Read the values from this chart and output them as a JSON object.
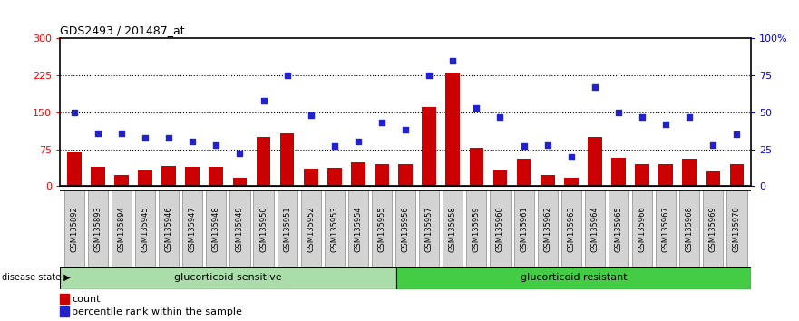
{
  "title": "GDS2493 / 201487_at",
  "samples": [
    "GSM135892",
    "GSM135893",
    "GSM135894",
    "GSM135945",
    "GSM135946",
    "GSM135947",
    "GSM135948",
    "GSM135949",
    "GSM135950",
    "GSM135951",
    "GSM135952",
    "GSM135953",
    "GSM135954",
    "GSM135955",
    "GSM135956",
    "GSM135957",
    "GSM135958",
    "GSM135959",
    "GSM135960",
    "GSM135961",
    "GSM135962",
    "GSM135963",
    "GSM135964",
    "GSM135965",
    "GSM135966",
    "GSM135967",
    "GSM135968",
    "GSM135969",
    "GSM135970"
  ],
  "counts": [
    68,
    40,
    22,
    32,
    42,
    40,
    40,
    18,
    100,
    108,
    35,
    38,
    48,
    45,
    45,
    160,
    230,
    78,
    32,
    55,
    22,
    18,
    100,
    58,
    45,
    45,
    55,
    30,
    45
  ],
  "percentiles": [
    50,
    36,
    36,
    33,
    33,
    30,
    28,
    22,
    58,
    75,
    48,
    27,
    30,
    43,
    38,
    75,
    85,
    53,
    47,
    27,
    28,
    20,
    67,
    50,
    47,
    42,
    47,
    28,
    35
  ],
  "sensitive_count": 14,
  "resistant_count": 15,
  "ylim_left": [
    0,
    300
  ],
  "ylim_right": [
    0,
    100
  ],
  "yticks_left": [
    0,
    75,
    150,
    225,
    300
  ],
  "yticks_right": [
    0,
    25,
    50,
    75,
    100
  ],
  "ytick_right_labels": [
    "0",
    "25",
    "50",
    "75",
    "100%"
  ],
  "bar_color": "#cc0000",
  "dot_color": "#2222cc",
  "sensitive_color": "#aaddaa",
  "resistant_color": "#44cc44",
  "bg_color": "#d3d3d3",
  "label_count": "count",
  "label_percentile": "percentile rank within the sample",
  "label_disease": "disease state",
  "label_sensitive": "glucorticoid sensitive",
  "label_resistant": "glucorticoid resistant"
}
